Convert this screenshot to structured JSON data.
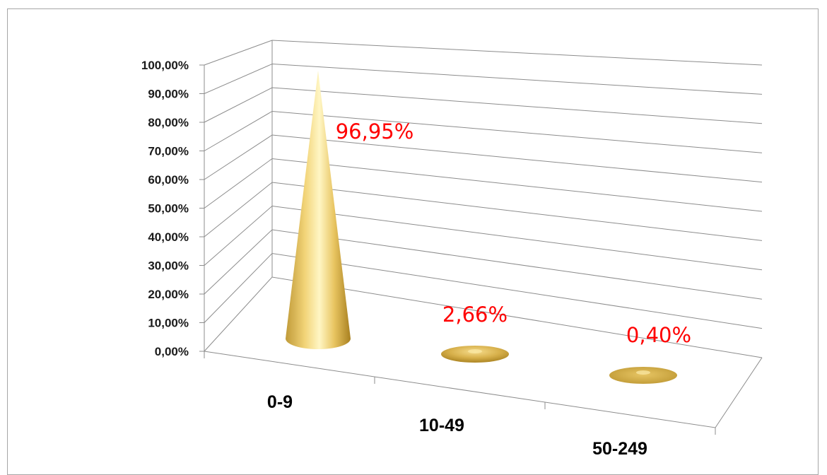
{
  "chart_data": {
    "type": "bar",
    "style": "3d-cone",
    "categories": [
      "0-9",
      "10-49",
      "50-249"
    ],
    "values": [
      96.95,
      2.66,
      0.4
    ],
    "data_labels": [
      "96,95%",
      "2,66%",
      "0,40%"
    ],
    "y_ticks": [
      "0,00%",
      "10,00%",
      "20,00%",
      "30,00%",
      "40,00%",
      "50,00%",
      "60,00%",
      "70,00%",
      "80,00%",
      "90,00%",
      "100,00%"
    ],
    "ylim": [
      0,
      100
    ],
    "grid": true,
    "legend": "none",
    "colors": {
      "cone_light": "#fff2b0",
      "cone_mid": "#f0d070",
      "cone_dark": "#b8902a",
      "label": "#ff0000",
      "grid": "#8c8c8c"
    }
  }
}
